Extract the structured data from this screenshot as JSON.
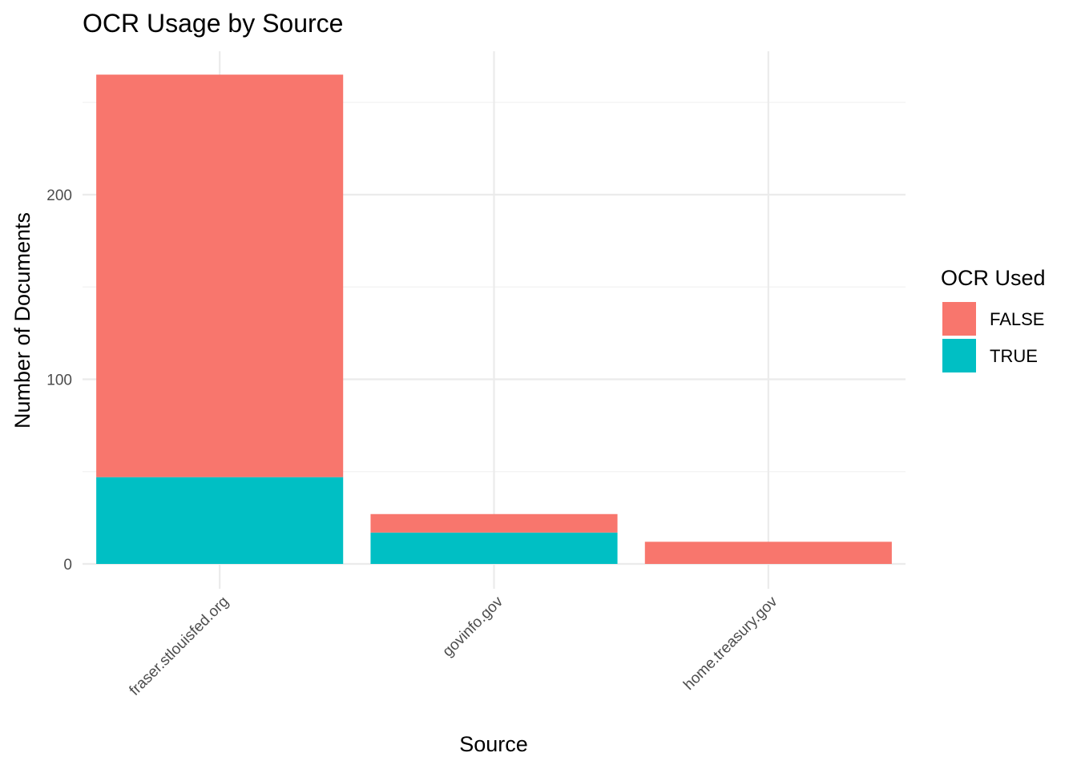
{
  "chart_data": {
    "type": "bar",
    "stacked": true,
    "title": "OCR Usage by Source",
    "xlabel": "Source",
    "ylabel": "Number of Documents",
    "categories": [
      "fraser.stlouisfed.org",
      "govinfo.gov",
      "home.treasury.gov"
    ],
    "series": [
      {
        "name": "FALSE",
        "values": [
          218,
          10,
          12
        ],
        "color": "#F8766D"
      },
      {
        "name": "TRUE",
        "values": [
          47,
          17,
          0
        ],
        "color": "#00BFC4"
      }
    ],
    "yticks": [
      0,
      100,
      200
    ],
    "ylim": [
      0,
      277
    ],
    "grid": true,
    "legend": {
      "title": "OCR Used",
      "position": "right",
      "entries": [
        "FALSE",
        "TRUE"
      ]
    }
  }
}
